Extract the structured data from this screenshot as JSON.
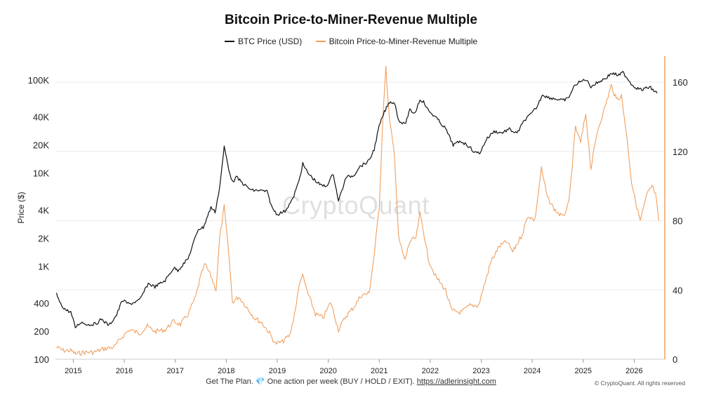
{
  "chart_data": {
    "type": "line",
    "title": "Bitcoin Price-to-Miner-Revenue Multiple",
    "ylabel": "Price ($)",
    "y2label": "",
    "y_scale": "log",
    "ylim": [
      100,
      180000
    ],
    "y2lim": [
      0,
      175
    ],
    "xlim": [
      2014.65,
      2026.6
    ],
    "legend_position": "top-center",
    "grid": "horizontal",
    "x_ticks": [
      "2015",
      "2016",
      "2017",
      "2018",
      "2019",
      "2020",
      "2021",
      "2022",
      "2023",
      "2024",
      "2025",
      "2026"
    ],
    "y_ticks": [
      {
        "value": 100,
        "label": "100"
      },
      {
        "value": 200,
        "label": "200"
      },
      {
        "value": 400,
        "label": "400"
      },
      {
        "value": 1000,
        "label": "1K"
      },
      {
        "value": 2000,
        "label": "2K"
      },
      {
        "value": 4000,
        "label": "4K"
      },
      {
        "value": 10000,
        "label": "10K"
      },
      {
        "value": 20000,
        "label": "20K"
      },
      {
        "value": 40000,
        "label": "40K"
      },
      {
        "value": 100000,
        "label": "100K"
      }
    ],
    "y2_ticks": [
      {
        "value": 0,
        "label": "0"
      },
      {
        "value": 40,
        "label": "40"
      },
      {
        "value": 80,
        "label": "80"
      },
      {
        "value": 120,
        "label": "120"
      },
      {
        "value": 160,
        "label": "160"
      }
    ],
    "series": [
      {
        "name": "BTC Price (USD)",
        "color": "#111111",
        "axis": "left",
        "points": [
          [
            2014.67,
            500
          ],
          [
            2014.75,
            390
          ],
          [
            2014.85,
            340
          ],
          [
            2014.95,
            320
          ],
          [
            2015.04,
            220
          ],
          [
            2015.15,
            250
          ],
          [
            2015.3,
            235
          ],
          [
            2015.45,
            240
          ],
          [
            2015.55,
            270
          ],
          [
            2015.7,
            230
          ],
          [
            2015.85,
            300
          ],
          [
            2015.96,
            430
          ],
          [
            2016.1,
            390
          ],
          [
            2016.3,
            430
          ],
          [
            2016.47,
            650
          ],
          [
            2016.6,
            600
          ],
          [
            2016.8,
            700
          ],
          [
            2016.97,
            960
          ],
          [
            2017.05,
            900
          ],
          [
            2017.25,
            1200
          ],
          [
            2017.45,
            2500
          ],
          [
            2017.55,
            2600
          ],
          [
            2017.7,
            4300
          ],
          [
            2017.78,
            3800
          ],
          [
            2017.87,
            7000
          ],
          [
            2017.96,
            19000
          ],
          [
            2018.05,
            11000
          ],
          [
            2018.12,
            8000
          ],
          [
            2018.2,
            9000
          ],
          [
            2018.35,
            7500
          ],
          [
            2018.5,
            6500
          ],
          [
            2018.65,
            6500
          ],
          [
            2018.8,
            6300
          ],
          [
            2018.9,
            4200
          ],
          [
            2019.0,
            3600
          ],
          [
            2019.15,
            3900
          ],
          [
            2019.3,
            5200
          ],
          [
            2019.42,
            8000
          ],
          [
            2019.5,
            12500
          ],
          [
            2019.6,
            10000
          ],
          [
            2019.75,
            8200
          ],
          [
            2019.85,
            7400
          ],
          [
            2019.96,
            7200
          ],
          [
            2020.1,
            9800
          ],
          [
            2020.2,
            5000
          ],
          [
            2020.35,
            9000
          ],
          [
            2020.5,
            9400
          ],
          [
            2020.6,
            11500
          ],
          [
            2020.8,
            13500
          ],
          [
            2020.9,
            18000
          ],
          [
            2021.0,
            32000
          ],
          [
            2021.1,
            45000
          ],
          [
            2021.2,
            58000
          ],
          [
            2021.3,
            57000
          ],
          [
            2021.38,
            37000
          ],
          [
            2021.5,
            33000
          ],
          [
            2021.6,
            47000
          ],
          [
            2021.7,
            44000
          ],
          [
            2021.8,
            62000
          ],
          [
            2021.87,
            58000
          ],
          [
            2021.96,
            47000
          ],
          [
            2022.1,
            40000
          ],
          [
            2022.3,
            30000
          ],
          [
            2022.45,
            20000
          ],
          [
            2022.6,
            22000
          ],
          [
            2022.75,
            19500
          ],
          [
            2022.88,
            16500
          ],
          [
            2022.98,
            16600
          ],
          [
            2023.1,
            23000
          ],
          [
            2023.25,
            28000
          ],
          [
            2023.4,
            27000
          ],
          [
            2023.55,
            29500
          ],
          [
            2023.7,
            26500
          ],
          [
            2023.85,
            37000
          ],
          [
            2023.98,
            43000
          ],
          [
            2024.1,
            52000
          ],
          [
            2024.2,
            70000
          ],
          [
            2024.3,
            65000
          ],
          [
            2024.5,
            62000
          ],
          [
            2024.6,
            60000
          ],
          [
            2024.7,
            63000
          ],
          [
            2024.85,
            90000
          ],
          [
            2024.96,
            96000
          ],
          [
            2025.05,
            102000
          ],
          [
            2025.15,
            85000
          ],
          [
            2025.3,
            95000
          ],
          [
            2025.45,
            105000
          ],
          [
            2025.55,
            118000
          ],
          [
            2025.7,
            112000
          ],
          [
            2025.78,
            120000
          ],
          [
            2025.88,
            102000
          ],
          [
            2025.96,
            88000
          ],
          [
            2026.05,
            82000
          ],
          [
            2026.15,
            78000
          ],
          [
            2026.3,
            84000
          ],
          [
            2026.45,
            72000
          ]
        ]
      },
      {
        "name": "Bitcoin Price-to-Miner-Revenue Multiple",
        "color": "#f0a060",
        "axis": "right",
        "points": [
          [
            2014.67,
            7
          ],
          [
            2014.8,
            5
          ],
          [
            2014.95,
            5
          ],
          [
            2015.05,
            3
          ],
          [
            2015.2,
            4
          ],
          [
            2015.4,
            4
          ],
          [
            2015.6,
            6
          ],
          [
            2015.8,
            7
          ],
          [
            2015.96,
            13
          ],
          [
            2016.1,
            17
          ],
          [
            2016.3,
            15
          ],
          [
            2016.45,
            19
          ],
          [
            2016.6,
            16
          ],
          [
            2016.8,
            17
          ],
          [
            2016.97,
            22
          ],
          [
            2017.1,
            20
          ],
          [
            2017.25,
            26
          ],
          [
            2017.4,
            36
          ],
          [
            2017.5,
            48
          ],
          [
            2017.58,
            55
          ],
          [
            2017.7,
            48
          ],
          [
            2017.8,
            40
          ],
          [
            2017.87,
            70
          ],
          [
            2017.96,
            88
          ],
          [
            2018.05,
            60
          ],
          [
            2018.12,
            33
          ],
          [
            2018.25,
            36
          ],
          [
            2018.4,
            30
          ],
          [
            2018.55,
            24
          ],
          [
            2018.7,
            21
          ],
          [
            2018.85,
            15
          ],
          [
            2018.96,
            9
          ],
          [
            2019.1,
            10
          ],
          [
            2019.25,
            14
          ],
          [
            2019.35,
            28
          ],
          [
            2019.45,
            46
          ],
          [
            2019.5,
            48
          ],
          [
            2019.6,
            38
          ],
          [
            2019.75,
            26
          ],
          [
            2019.9,
            24
          ],
          [
            2020.05,
            33
          ],
          [
            2020.2,
            17
          ],
          [
            2020.35,
            25
          ],
          [
            2020.5,
            30
          ],
          [
            2020.65,
            37
          ],
          [
            2020.8,
            38
          ],
          [
            2020.9,
            60
          ],
          [
            2021.0,
            88
          ],
          [
            2021.08,
            145
          ],
          [
            2021.13,
            168
          ],
          [
            2021.2,
            138
          ],
          [
            2021.3,
            118
          ],
          [
            2021.38,
            70
          ],
          [
            2021.5,
            57
          ],
          [
            2021.6,
            68
          ],
          [
            2021.72,
            70
          ],
          [
            2021.8,
            84
          ],
          [
            2021.88,
            72
          ],
          [
            2021.96,
            58
          ],
          [
            2022.1,
            48
          ],
          [
            2022.3,
            40
          ],
          [
            2022.42,
            28
          ],
          [
            2022.6,
            27
          ],
          [
            2022.78,
            31
          ],
          [
            2022.95,
            31
          ],
          [
            2023.05,
            42
          ],
          [
            2023.2,
            57
          ],
          [
            2023.35,
            65
          ],
          [
            2023.5,
            68
          ],
          [
            2023.62,
            62
          ],
          [
            2023.8,
            72
          ],
          [
            2023.92,
            83
          ],
          [
            2024.05,
            80
          ],
          [
            2024.18,
            110
          ],
          [
            2024.3,
            93
          ],
          [
            2024.45,
            86
          ],
          [
            2024.6,
            82
          ],
          [
            2024.72,
            90
          ],
          [
            2024.85,
            134
          ],
          [
            2024.95,
            125
          ],
          [
            2025.05,
            142
          ],
          [
            2025.15,
            110
          ],
          [
            2025.28,
            132
          ],
          [
            2025.42,
            145
          ],
          [
            2025.55,
            158
          ],
          [
            2025.65,
            150
          ],
          [
            2025.75,
            152
          ],
          [
            2025.85,
            130
          ],
          [
            2025.95,
            102
          ],
          [
            2026.05,
            88
          ],
          [
            2026.12,
            80
          ],
          [
            2026.25,
            95
          ],
          [
            2026.35,
            100
          ],
          [
            2026.42,
            95
          ],
          [
            2026.48,
            80
          ]
        ]
      }
    ]
  },
  "watermark": "CryptoQuant",
  "footer": {
    "prefix": "Get The Plan.",
    "gem_icon": "💎",
    "text": "One action per week (BUY / HOLD / EXIT).",
    "link": "https://adlerinsight.com"
  },
  "copyright": "© CryptoQuant. All rights reserved"
}
